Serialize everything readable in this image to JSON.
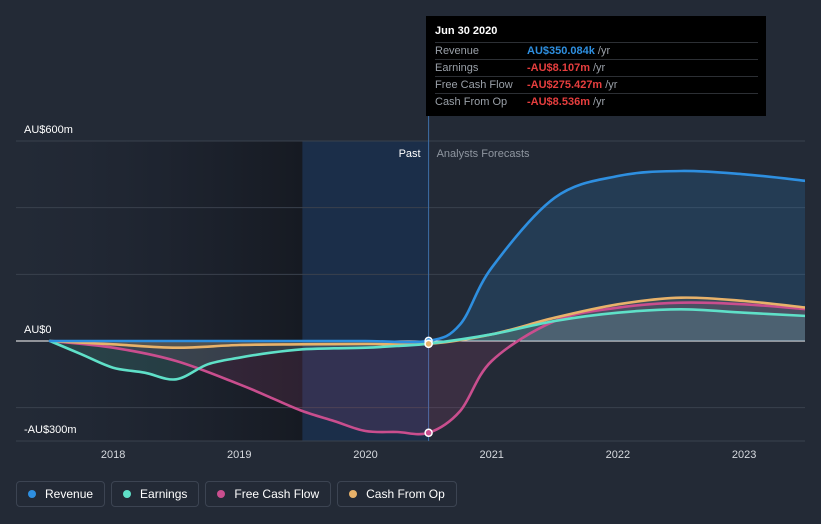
{
  "chart_data": {
    "type": "line",
    "y_axis": {
      "top_label": "AU$600m",
      "zero_label": "AU$0",
      "bottom_label": "-AU$300m",
      "ylim": [
        -300,
        600
      ]
    },
    "x_ticks": [
      "2018",
      "2019",
      "2020",
      "2021",
      "2022",
      "2023"
    ],
    "region_labels": {
      "past": "Past",
      "forecast": "Analysts Forecasts"
    },
    "series": [
      {
        "name": "Revenue",
        "color": "#2e8fe0",
        "points": [
          [
            2017.5,
            0
          ],
          [
            2018.0,
            0
          ],
          [
            2018.5,
            0
          ],
          [
            2019.0,
            0
          ],
          [
            2019.5,
            0
          ],
          [
            2020.0,
            0
          ],
          [
            2020.5,
            0.35
          ],
          [
            2020.75,
            50
          ],
          [
            2021.0,
            220
          ],
          [
            2021.5,
            430
          ],
          [
            2022.0,
            495
          ],
          [
            2022.5,
            510
          ],
          [
            2023.0,
            500
          ],
          [
            2023.5,
            480
          ]
        ]
      },
      {
        "name": "Earnings",
        "color": "#5fe0c8",
        "points": [
          [
            2017.5,
            0
          ],
          [
            2017.75,
            -40
          ],
          [
            2018.0,
            -80
          ],
          [
            2018.25,
            -95
          ],
          [
            2018.5,
            -115
          ],
          [
            2018.75,
            -70
          ],
          [
            2019.0,
            -50
          ],
          [
            2019.25,
            -35
          ],
          [
            2019.5,
            -25
          ],
          [
            2019.75,
            -22
          ],
          [
            2020.0,
            -20
          ],
          [
            2020.25,
            -15
          ],
          [
            2020.5,
            -8.107
          ],
          [
            2021.0,
            20
          ],
          [
            2021.5,
            60
          ],
          [
            2022.0,
            85
          ],
          [
            2022.5,
            95
          ],
          [
            2023.0,
            85
          ],
          [
            2023.5,
            75
          ]
        ]
      },
      {
        "name": "Free Cash Flow",
        "color": "#c94e8e",
        "points": [
          [
            2017.5,
            0
          ],
          [
            2018.0,
            -20
          ],
          [
            2018.5,
            -60
          ],
          [
            2019.0,
            -130
          ],
          [
            2019.25,
            -170
          ],
          [
            2019.5,
            -210
          ],
          [
            2019.75,
            -240
          ],
          [
            2020.0,
            -270
          ],
          [
            2020.25,
            -273
          ],
          [
            2020.5,
            -275.427
          ],
          [
            2020.75,
            -210
          ],
          [
            2021.0,
            -60
          ],
          [
            2021.5,
            60
          ],
          [
            2022.0,
            100
          ],
          [
            2022.5,
            115
          ],
          [
            2023.0,
            110
          ],
          [
            2023.5,
            95
          ]
        ]
      },
      {
        "name": "Cash From Op",
        "color": "#e8b26a",
        "points": [
          [
            2017.5,
            0
          ],
          [
            2018.0,
            -10
          ],
          [
            2018.5,
            -20
          ],
          [
            2019.0,
            -12
          ],
          [
            2019.5,
            -10
          ],
          [
            2020.0,
            -9
          ],
          [
            2020.5,
            -8.536
          ],
          [
            2021.0,
            20
          ],
          [
            2021.5,
            70
          ],
          [
            2022.0,
            110
          ],
          [
            2022.5,
            130
          ],
          [
            2023.0,
            120
          ],
          [
            2023.5,
            100
          ]
        ]
      }
    ],
    "highlight_date": 2020.5,
    "legend_position": "bottom-left"
  },
  "tooltip": {
    "date": "Jun 30 2020",
    "rows": [
      {
        "label": "Revenue",
        "value": "AU$350.084k",
        "unit": "/yr",
        "color": "#2e8fe0"
      },
      {
        "label": "Earnings",
        "value": "-AU$8.107m",
        "unit": "/yr",
        "color": "#e63e3e"
      },
      {
        "label": "Free Cash Flow",
        "value": "-AU$275.427m",
        "unit": "/yr",
        "color": "#e63e3e"
      },
      {
        "label": "Cash From Op",
        "value": "-AU$8.536m",
        "unit": "/yr",
        "color": "#e63e3e"
      }
    ]
  },
  "legend": [
    {
      "label": "Revenue",
      "color": "#2e8fe0"
    },
    {
      "label": "Earnings",
      "color": "#5fe0c8"
    },
    {
      "label": "Free Cash Flow",
      "color": "#c94e8e"
    },
    {
      "label": "Cash From Op",
      "color": "#e8b26a"
    }
  ]
}
